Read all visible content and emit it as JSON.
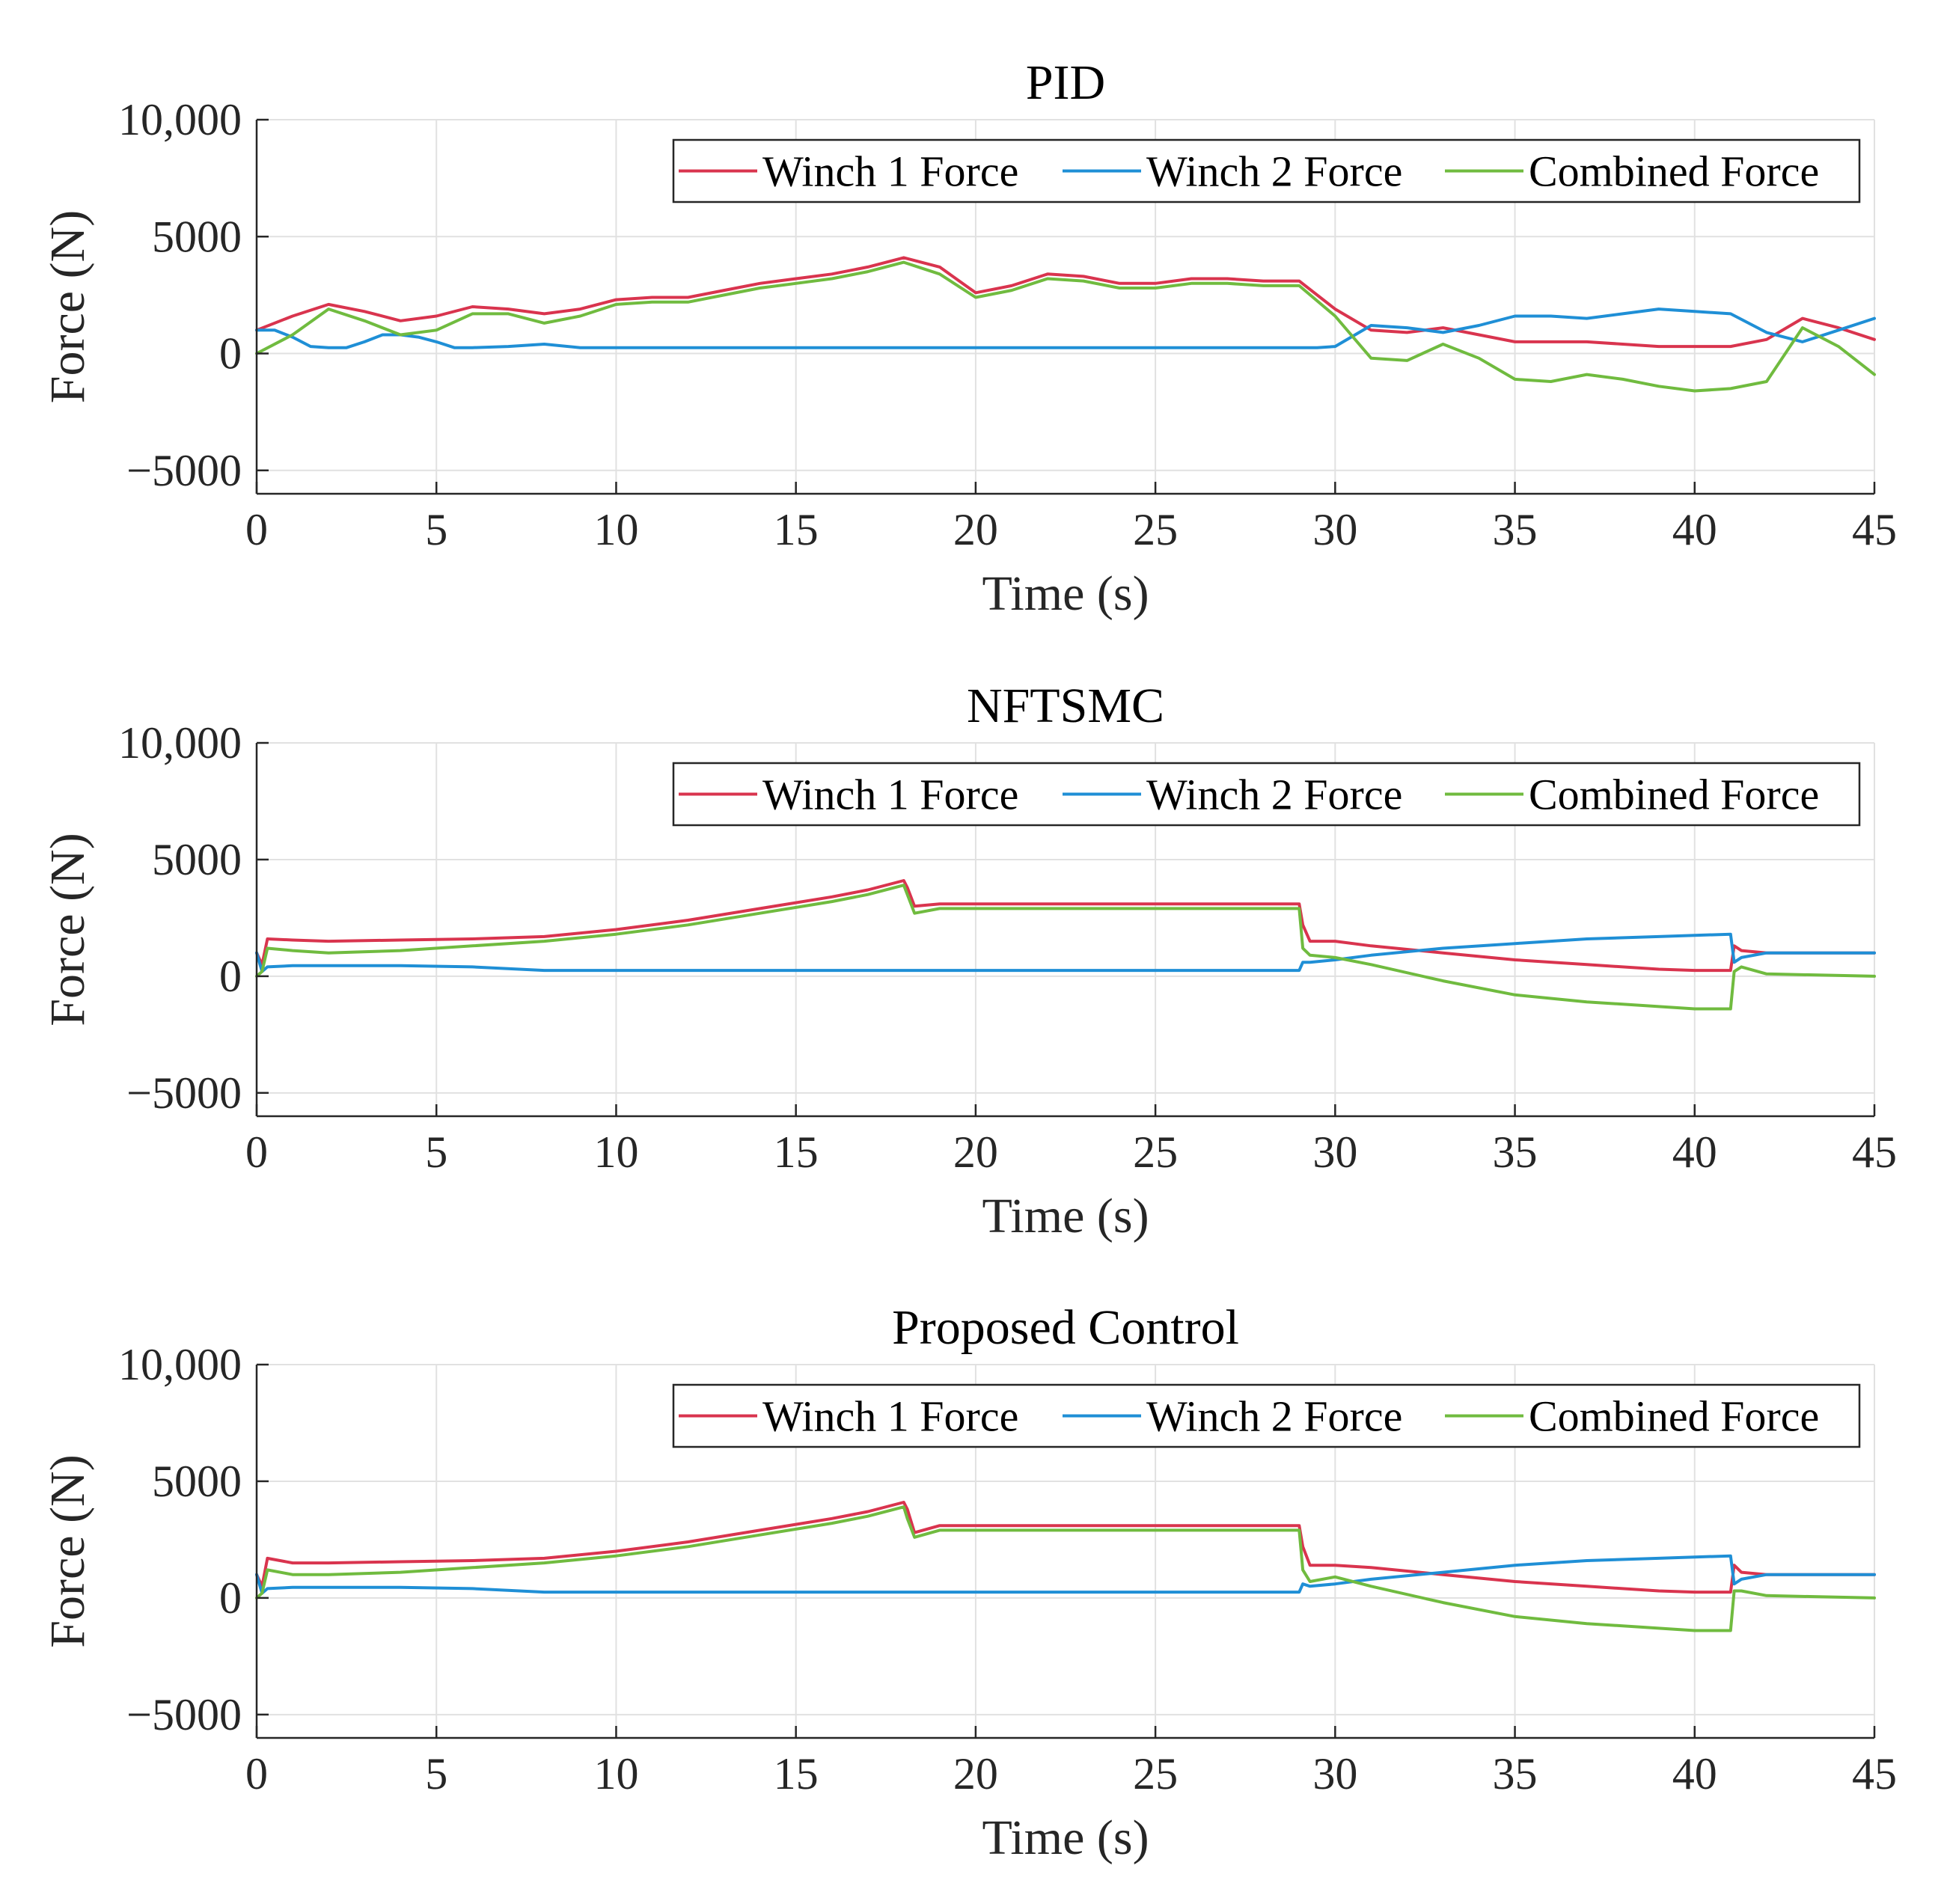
{
  "chart_data": [
    {
      "type": "line",
      "title": "PID",
      "xlabel": "Time (s)",
      "ylabel": "Force (N)",
      "xlim": [
        0,
        45
      ],
      "ylim": [
        -6000,
        10000
      ],
      "xticks": [
        0,
        5,
        10,
        15,
        20,
        25,
        30,
        35,
        40,
        45
      ],
      "xtick_labels": [
        "0",
        "5",
        "10",
        "15",
        "20",
        "25",
        "30",
        "35",
        "40",
        "45"
      ],
      "yticks": [
        -5000,
        0,
        5000,
        10000
      ],
      "ytick_labels": [
        "−5000",
        "0",
        "5000",
        "10,000"
      ],
      "grid": true,
      "legend_position": "top-right",
      "series": [
        {
          "name": "Winch 1 Force",
          "color": "#d9344e",
          "x": [
            0,
            1,
            2,
            3,
            4,
            5,
            6,
            7,
            8,
            9,
            10,
            11,
            12,
            13,
            14,
            15,
            16,
            17,
            18,
            19,
            20,
            21,
            22,
            23,
            24,
            25,
            26,
            27,
            28,
            29,
            30,
            31,
            32,
            33,
            34,
            35,
            36,
            37,
            38,
            39,
            40,
            41,
            42,
            43,
            44,
            45
          ],
          "y": [
            1000,
            1600,
            2100,
            1800,
            1400,
            1600,
            2000,
            1900,
            1700,
            1900,
            2300,
            2400,
            2400,
            2700,
            3000,
            3200,
            3400,
            3700,
            4100,
            3700,
            2600,
            2900,
            3400,
            3300,
            3000,
            3000,
            3200,
            3200,
            3100,
            3100,
            1900,
            1000,
            900,
            1100,
            800,
            500,
            500,
            500,
            400,
            300,
            300,
            300,
            600,
            1500,
            1100,
            600
          ]
        },
        {
          "name": "Winch 2 Force",
          "color": "#1f8fd6",
          "x": [
            0,
            0.5,
            1,
            1.5,
            2,
            2.5,
            3,
            3.5,
            4,
            4.5,
            5,
            5.5,
            6,
            7,
            8,
            9,
            10,
            15,
            20,
            25,
            29.5,
            30,
            31,
            32,
            33,
            34,
            35,
            36,
            37,
            38,
            39,
            40,
            41,
            42,
            43,
            44,
            45
          ],
          "y": [
            1000,
            1000,
            700,
            300,
            250,
            250,
            500,
            800,
            800,
            700,
            500,
            250,
            250,
            300,
            400,
            250,
            250,
            250,
            250,
            250,
            250,
            300,
            1200,
            1100,
            900,
            1200,
            1600,
            1600,
            1500,
            1700,
            1900,
            1800,
            1700,
            900,
            500,
            1000,
            1500
          ]
        },
        {
          "name": "Combined Force",
          "color": "#70bb3f",
          "x": [
            0,
            1,
            2,
            3,
            4,
            5,
            6,
            7,
            8,
            9,
            10,
            11,
            12,
            13,
            14,
            15,
            16,
            17,
            18,
            19,
            20,
            21,
            22,
            23,
            24,
            25,
            26,
            27,
            28,
            29,
            30,
            31,
            32,
            33,
            34,
            35,
            36,
            37,
            38,
            39,
            40,
            41,
            42,
            43,
            44,
            45
          ],
          "y": [
            0,
            800,
            1900,
            1400,
            800,
            1000,
            1700,
            1700,
            1300,
            1600,
            2100,
            2200,
            2200,
            2500,
            2800,
            3000,
            3200,
            3500,
            3900,
            3400,
            2400,
            2700,
            3200,
            3100,
            2800,
            2800,
            3000,
            3000,
            2900,
            2900,
            1600,
            -200,
            -300,
            400,
            -200,
            -1100,
            -1200,
            -900,
            -1100,
            -1400,
            -1600,
            -1500,
            -1200,
            1100,
            300,
            -900
          ]
        }
      ]
    },
    {
      "type": "line",
      "title": "NFTSMC",
      "xlabel": "Time (s)",
      "ylabel": "Force (N)",
      "xlim": [
        0,
        45
      ],
      "ylim": [
        -6000,
        10000
      ],
      "xticks": [
        0,
        5,
        10,
        15,
        20,
        25,
        30,
        35,
        40,
        45
      ],
      "xtick_labels": [
        "0",
        "5",
        "10",
        "15",
        "20",
        "25",
        "30",
        "35",
        "40",
        "45"
      ],
      "yticks": [
        -5000,
        0,
        5000,
        10000
      ],
      "ytick_labels": [
        "−5000",
        "0",
        "5000",
        "10,000"
      ],
      "grid": true,
      "legend_position": "top-right",
      "series": [
        {
          "name": "Winch 1 Force",
          "color": "#d9344e",
          "x": [
            0,
            0.15,
            0.3,
            1,
            2,
            4,
            6,
            8,
            10,
            12,
            14,
            16,
            17,
            18,
            18.1,
            18.3,
            19,
            20,
            25,
            29,
            29.1,
            29.3,
            30,
            31,
            33,
            35,
            37,
            39,
            40,
            41,
            41.1,
            41.3,
            42,
            45
          ],
          "y": [
            1000,
            500,
            1600,
            1550,
            1500,
            1550,
            1600,
            1700,
            2000,
            2400,
            2900,
            3400,
            3700,
            4100,
            3800,
            3000,
            3100,
            3100,
            3100,
            3100,
            2200,
            1500,
            1500,
            1300,
            1000,
            700,
            500,
            300,
            250,
            250,
            1300,
            1100,
            1000,
            1000
          ]
        },
        {
          "name": "Winch 2 Force",
          "color": "#1f8fd6",
          "x": [
            0,
            0.15,
            0.3,
            1,
            2,
            4,
            6,
            8,
            10,
            15,
            20,
            25,
            29,
            29.1,
            29.3,
            30,
            31,
            33,
            35,
            37,
            39,
            40,
            41,
            41.1,
            41.3,
            42,
            45
          ],
          "y": [
            1000,
            200,
            400,
            450,
            450,
            450,
            400,
            250,
            250,
            250,
            250,
            250,
            250,
            600,
            600,
            700,
            900,
            1200,
            1400,
            1600,
            1700,
            1750,
            1800,
            600,
            800,
            1000,
            1000
          ]
        },
        {
          "name": "Combined Force",
          "color": "#70bb3f",
          "x": [
            0,
            0.15,
            0.3,
            1,
            2,
            4,
            6,
            8,
            10,
            12,
            14,
            16,
            17,
            18,
            18.1,
            18.3,
            19,
            20,
            25,
            29,
            29.1,
            29.3,
            30,
            31,
            33,
            35,
            37,
            39,
            40,
            41,
            41.1,
            41.3,
            42,
            45
          ],
          "y": [
            0,
            200,
            1200,
            1100,
            1000,
            1100,
            1300,
            1500,
            1800,
            2200,
            2700,
            3200,
            3500,
            3900,
            3500,
            2700,
            2900,
            2900,
            2900,
            2900,
            1200,
            900,
            800,
            500,
            -200,
            -800,
            -1100,
            -1300,
            -1400,
            -1400,
            200,
            400,
            100,
            0
          ]
        }
      ]
    },
    {
      "type": "line",
      "title": "Proposed Control",
      "xlabel": "Time (s)",
      "ylabel": "Force (N)",
      "xlim": [
        0,
        45
      ],
      "ylim": [
        -6000,
        10000
      ],
      "xticks": [
        0,
        5,
        10,
        15,
        20,
        25,
        30,
        35,
        40,
        45
      ],
      "xtick_labels": [
        "0",
        "5",
        "10",
        "15",
        "20",
        "25",
        "30",
        "35",
        "40",
        "45"
      ],
      "yticks": [
        -5000,
        0,
        5000,
        10000
      ],
      "ytick_labels": [
        "−5000",
        "0",
        "5000",
        "10,000"
      ],
      "grid": true,
      "legend_position": "top-right",
      "series": [
        {
          "name": "Winch 1 Force",
          "color": "#d9344e",
          "x": [
            0,
            0.15,
            0.3,
            1,
            2,
            4,
            6,
            8,
            10,
            12,
            14,
            16,
            17,
            18,
            18.1,
            18.3,
            19,
            20,
            25,
            29,
            29.1,
            29.3,
            30,
            31,
            33,
            35,
            37,
            39,
            40,
            41,
            41.1,
            41.3,
            42,
            45
          ],
          "y": [
            1000,
            500,
            1700,
            1500,
            1500,
            1550,
            1600,
            1700,
            2000,
            2400,
            2900,
            3400,
            3700,
            4100,
            3800,
            2800,
            3100,
            3100,
            3100,
            3100,
            2200,
            1400,
            1400,
            1300,
            1000,
            700,
            500,
            300,
            250,
            250,
            1400,
            1100,
            1000,
            1000
          ]
        },
        {
          "name": "Winch 2 Force",
          "color": "#1f8fd6",
          "x": [
            0,
            0.15,
            0.3,
            1,
            2,
            4,
            6,
            8,
            10,
            15,
            20,
            25,
            29,
            29.1,
            29.3,
            30,
            31,
            33,
            35,
            37,
            39,
            40,
            41,
            41.1,
            41.3,
            42,
            45
          ],
          "y": [
            1000,
            200,
            400,
            450,
            450,
            450,
            400,
            250,
            250,
            250,
            250,
            250,
            250,
            600,
            500,
            600,
            800,
            1100,
            1400,
            1600,
            1700,
            1750,
            1800,
            600,
            800,
            1000,
            1000
          ]
        },
        {
          "name": "Combined Force",
          "color": "#70bb3f",
          "x": [
            0,
            0.15,
            0.3,
            1,
            2,
            4,
            6,
            8,
            10,
            12,
            14,
            16,
            17,
            18,
            18.1,
            18.3,
            19,
            20,
            25,
            29,
            29.1,
            29.3,
            30,
            31,
            33,
            35,
            37,
            39,
            40,
            41,
            41.1,
            41.3,
            42,
            45
          ],
          "y": [
            0,
            200,
            1200,
            1000,
            1000,
            1100,
            1300,
            1500,
            1800,
            2200,
            2700,
            3200,
            3500,
            3900,
            3400,
            2600,
            2900,
            2900,
            2900,
            2900,
            1200,
            700,
            900,
            500,
            -200,
            -800,
            -1100,
            -1300,
            -1400,
            -1400,
            300,
            300,
            100,
            0
          ]
        }
      ]
    }
  ]
}
